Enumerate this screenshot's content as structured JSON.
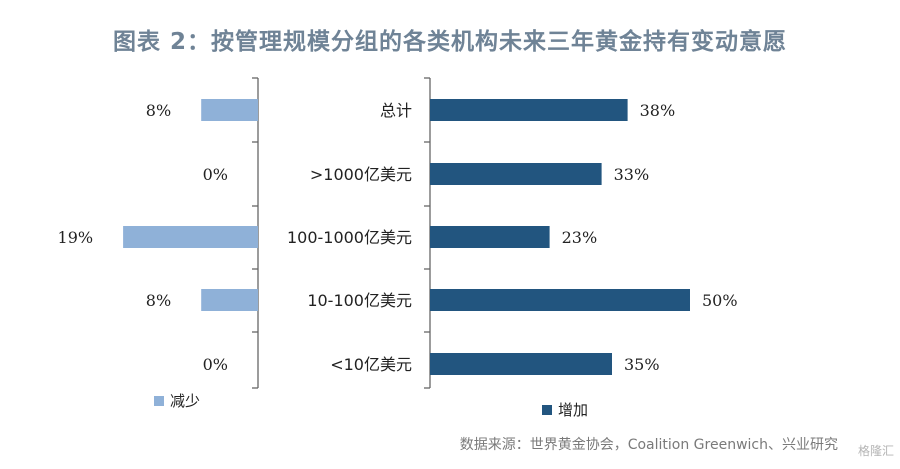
{
  "chart_data": {
    "type": "bar",
    "title": "图表 2：按管理规模分组的各类机构未来三年黄金持有变动意愿",
    "categories": [
      "总计",
      ">1000亿美元",
      "100-1000亿美元",
      "10-100亿美元",
      "<10亿美元"
    ],
    "series": [
      {
        "name": "减少",
        "values": [
          8,
          0,
          19,
          8,
          0
        ],
        "labels": [
          "8%",
          "0%",
          "19%",
          "8%",
          "0%"
        ],
        "color": "#8fb1d8"
      },
      {
        "name": "增加",
        "values": [
          38,
          33,
          23,
          50,
          35
        ],
        "labels": [
          "38%",
          "33%",
          "23%",
          "50%",
          "35%"
        ],
        "color": "#22557f"
      }
    ],
    "source": "数据来源：世界黄金协会，Coalition Greenwich、兴业研究",
    "watermark": "格隆汇"
  }
}
